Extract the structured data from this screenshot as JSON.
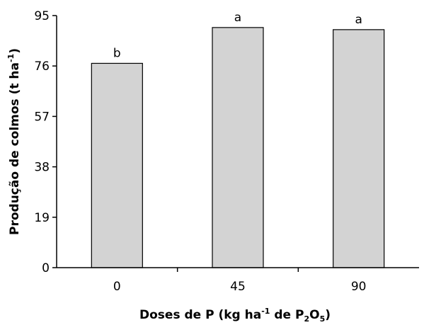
{
  "chart_data": {
    "type": "bar",
    "categories": [
      "0",
      "45",
      "90"
    ],
    "values": [
      77,
      90.5,
      89.7
    ],
    "bar_labels": [
      "b",
      "a",
      "a"
    ],
    "y_ticks": [
      "0",
      "19",
      "38",
      "57",
      "76",
      "95"
    ],
    "ylim": [
      0,
      95
    ],
    "ylabel": {
      "main": "Produção de colmos (t ha",
      "sup": "-1",
      "end": ")"
    },
    "xlabel": {
      "main": "Doses de P (kg ha",
      "sup": "-1",
      "mid": " de P",
      "sub1": "2",
      "o": "O",
      "sub2": "5",
      "end": ")"
    },
    "bar_color": "#d3d3d3",
    "grid": false
  }
}
